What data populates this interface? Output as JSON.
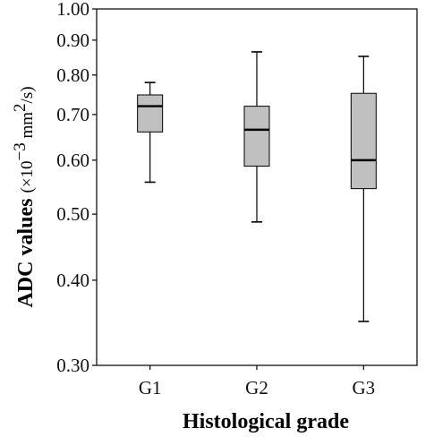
{
  "chart_data": {
    "type": "box",
    "xlabel": "Histological grade",
    "ylabel": "ADC values",
    "ylabel_unit_prefix": "(×10",
    "ylabel_unit_exp": "−3",
    "ylabel_unit_mid": " mm",
    "ylabel_unit_exp2": "2",
    "ylabel_unit_suffix": "/s)",
    "y_scale": "log",
    "ylim": [
      0.3,
      1.0
    ],
    "yticks": [
      "1.00",
      "0.90",
      "0.80",
      "0.70",
      "0.60",
      "0.50",
      "0.40",
      "0.30"
    ],
    "ytick_values": [
      1.0,
      0.9,
      0.8,
      0.7,
      0.6,
      0.5,
      0.4,
      0.3
    ],
    "categories": [
      "G1",
      "G2",
      "G3"
    ],
    "boxes": [
      {
        "category": "G1",
        "whisker_low": 0.557,
        "q1": 0.66,
        "median": 0.72,
        "q3": 0.748,
        "whisker_high": 0.78
      },
      {
        "category": "G2",
        "whisker_low": 0.487,
        "q1": 0.588,
        "median": 0.665,
        "q3": 0.72,
        "whisker_high": 0.865
      },
      {
        "category": "G3",
        "whisker_low": 0.348,
        "q1": 0.545,
        "median": 0.6,
        "q3": 0.752,
        "whisker_high": 0.852
      }
    ],
    "box_fill": "#c0c0c0",
    "grid": false
  }
}
